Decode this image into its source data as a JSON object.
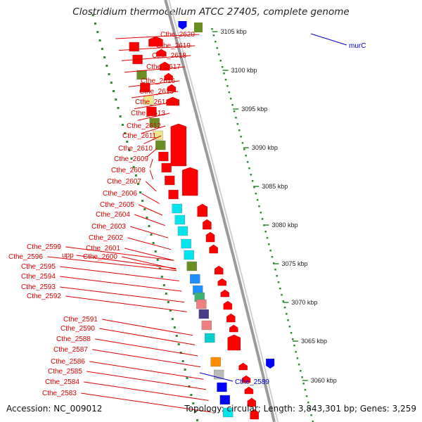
{
  "title": "Clostridium thermocellum ATCC 27405, complete genome",
  "accession": "Accession: NC_009012",
  "topology": "Topology: circular; Length: 3,843,301 bp; Genes: 3,259",
  "colors": {
    "forward_gene": "#ff0000",
    "reverse_gene": "#0000ff",
    "label_red": "#dd0000",
    "label_blue": "#0000cc",
    "tick": "#2e8b2e",
    "backbone": "#9a9a9a",
    "background": "#ffffff"
  },
  "scale_ticks": [
    {
      "label": "3105 kbp"
    },
    {
      "label": "3100 kbp"
    },
    {
      "label": "3095 kbp"
    },
    {
      "label": "3090 kbp"
    },
    {
      "label": "3085 kbp"
    },
    {
      "label": "3080 kbp"
    },
    {
      "label": "3075 kbp"
    },
    {
      "label": "3070 kbp"
    },
    {
      "label": "3065 kbp"
    },
    {
      "label": "3060 kbp"
    }
  ],
  "gene_labels_left": [
    "Cthe_2620",
    "Cthe_2619",
    "Cthe_2618",
    "Cthe_2617",
    "Cthe_2616",
    "Cthe_2615",
    "Cthe_2614",
    "Cthe_2613",
    "Cthe_2612",
    "Cthe_2611",
    "Cthe_2610",
    "Cthe_2609",
    "Cthe_2608",
    "Cthe_2607",
    "Cthe_2606",
    "Cthe_2605",
    "Cthe_2604",
    "Cthe_2603",
    "Cthe_2602",
    "Cthe_2601",
    "Cthe_2600",
    "upp",
    "Cthe_2599",
    "Cthe_2596",
    "Cthe_2595",
    "Cthe_2594",
    "Cthe_2593",
    "Cthe_2592",
    "Cthe_2591",
    "Cthe_2590",
    "Cthe_2588",
    "Cthe_2587",
    "Cthe_2586",
    "Cthe_2585",
    "Cthe_2584",
    "Cthe_2583"
  ],
  "gene_labels_right": [
    {
      "name": "murC"
    },
    {
      "name": "Cthe_2589"
    }
  ],
  "feature_colors": [
    "#ff0000",
    "#ff0000",
    "#6b8e23",
    "#ff0000",
    "#f0e68c",
    "#ff0000",
    "#6b8e23",
    "#f0e68c",
    "#6b8e23",
    "#ff0000",
    "#ff0000",
    "#ff0000",
    "#ff0000",
    "#00e5ee",
    "#00e5ee",
    "#00e5ee",
    "#00e5ee",
    "#00e5ee",
    "#6b8e23",
    "#1e90ff",
    "#1e90ff",
    "#3cb371",
    "#f08080",
    "#483d8b",
    "#f08080",
    "#00ced1",
    "#ff8c00",
    "#bbbbbb",
    "#0000ff",
    "#0000ff",
    "#00e5ee"
  ]
}
